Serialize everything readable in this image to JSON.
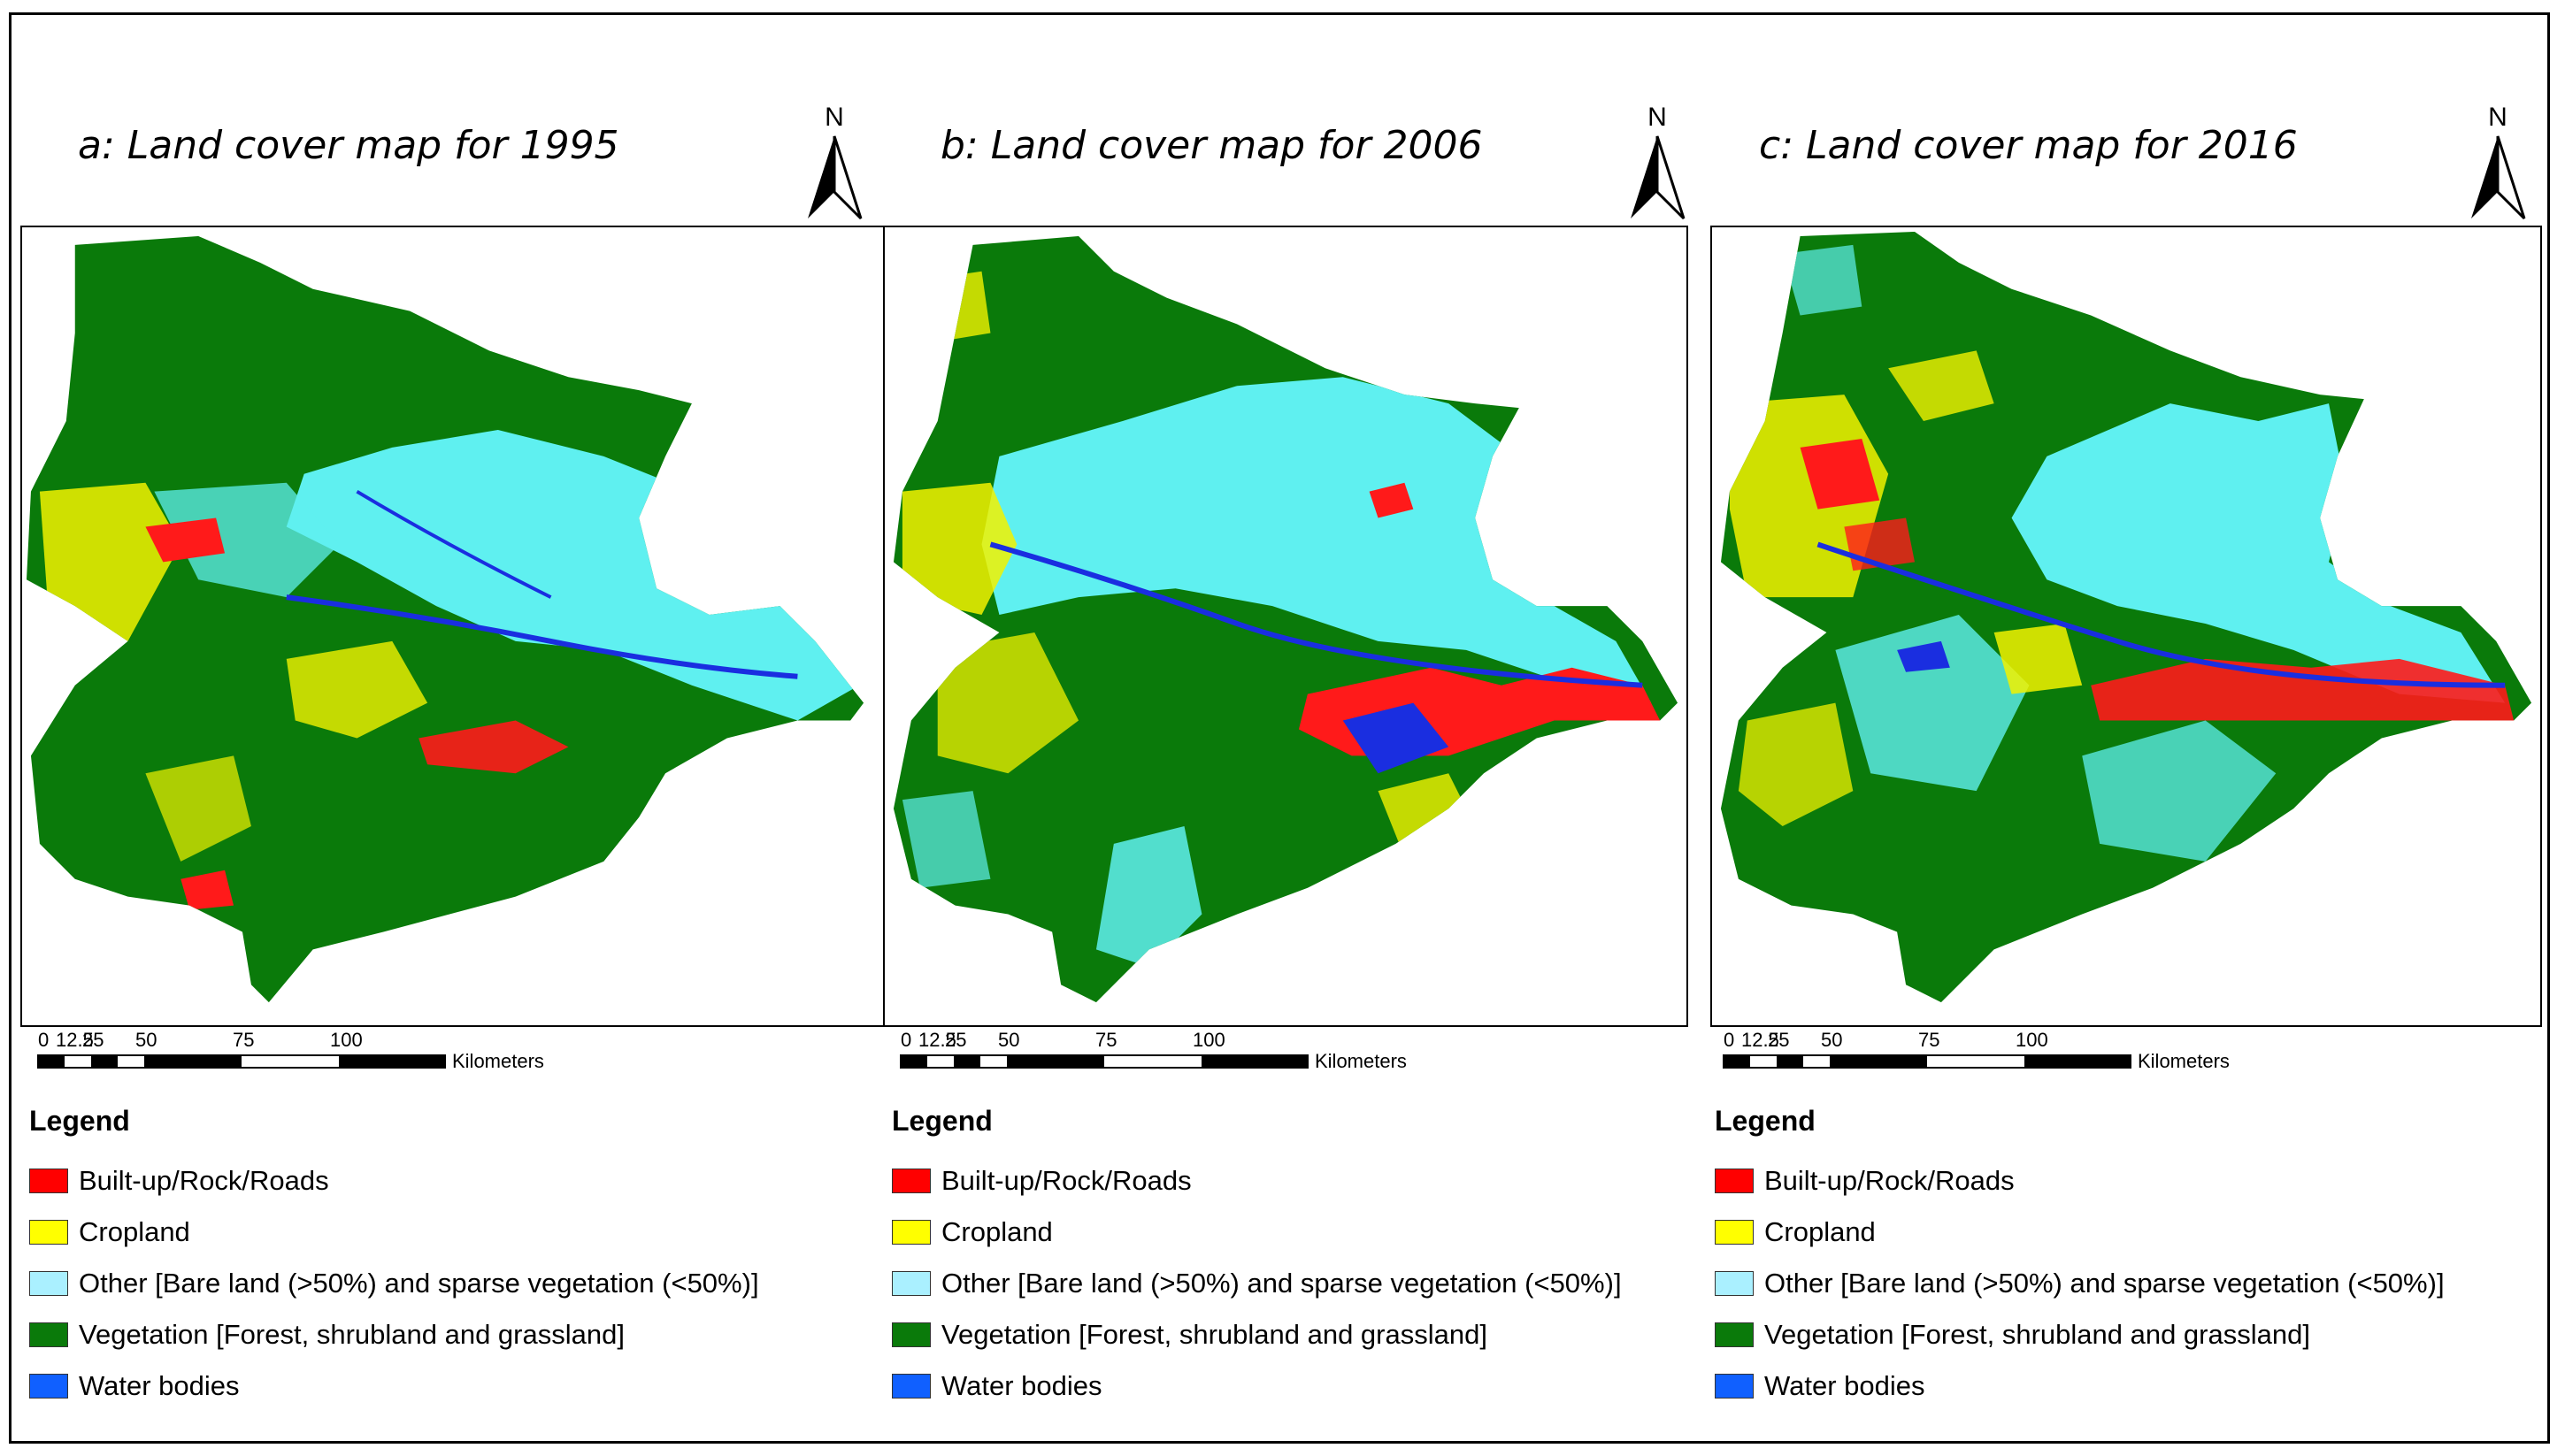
{
  "panels": [
    {
      "title": "a: Land cover map for 1995",
      "north": "N"
    },
    {
      "title": "b: Land cover map for 2006",
      "north": "N"
    },
    {
      "title": "c: Land cover map for 2016",
      "north": "N"
    }
  ],
  "scale": {
    "ticks": [
      "0",
      "12.5",
      "25",
      "50",
      "75",
      "100"
    ],
    "unit": "Kilometers"
  },
  "legend": {
    "title": "Legend",
    "items": [
      {
        "label": "Built-up/Rock/Roads",
        "color": "#ff0000"
      },
      {
        "label": "Cropland",
        "color": "#ffff00"
      },
      {
        "label": "Other [Bare land (>50%) and sparse vegetation (<50%)]",
        "color": "#aaf0ff"
      },
      {
        "label": "Vegetation [Forest, shrubland and grassland]",
        "color": "#0a7a0a"
      },
      {
        "label": "Water bodies",
        "color": "#1060ff"
      }
    ]
  },
  "colors": {
    "vegetation": "#0a7a0a",
    "bare": "#5ff0f0",
    "cropland": "#f2f200",
    "builtup": "#ff1a1a",
    "water": "#1a2ee0"
  }
}
